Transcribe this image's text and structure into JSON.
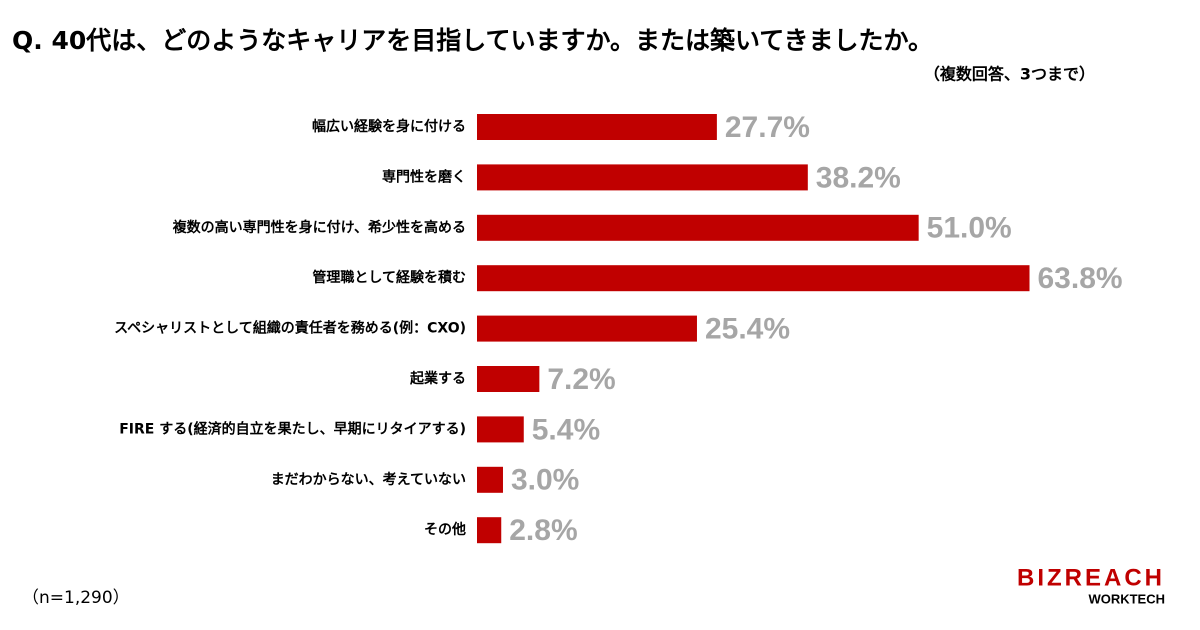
{
  "chart_data": {
    "type": "bar",
    "orientation": "horizontal",
    "title": "Q. 40代は、どのようなキャリアを目指していますか。または築いてきましたか。",
    "subtitle": "（複数回答、3つまで）",
    "note": "（n=1,290）",
    "categories": [
      "幅広い経験を身に付ける",
      "専門性を磨く",
      "複数の高い専門性を身に付け、希少性を高める",
      "管理職として経験を積む",
      "スペシャリストとして組織の責任者を務める(例：CXO)",
      "起業する",
      "FIRE する(経済的自立を果たし、早期にリタイアする)",
      "まだわからない、考えていない",
      "その他"
    ],
    "values": [
      27.7,
      38.2,
      51.0,
      63.8,
      25.4,
      7.2,
      5.4,
      3.0,
      2.8
    ],
    "value_labels": [
      "27.7%",
      "38.2%",
      "51.0%",
      "63.8%",
      "25.4%",
      "7.2%",
      "5.4%",
      "3.0%",
      "2.8%"
    ],
    "color": "#c00000",
    "label_color": "#a6a6a6"
  },
  "brand": {
    "name": "BIZREACH",
    "sub": "WORKTECH"
  }
}
